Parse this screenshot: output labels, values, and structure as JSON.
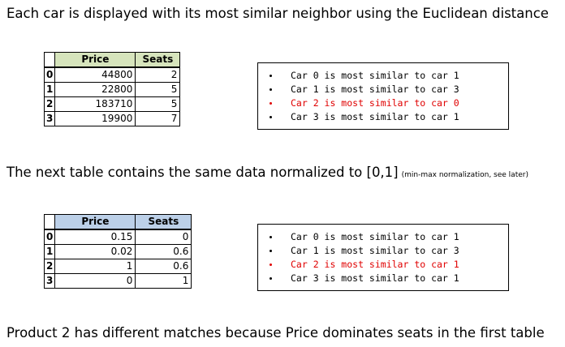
{
  "heading_top": "Each car is displayed with its most similar neighbor using the Euclidean distance",
  "heading_middle": "The next table contains the same data normalized to [0,1]",
  "heading_middle_note": "(min-max normalization, see later)",
  "heading_bottom": "Product 2 has different matches because Price dominates seats in the first table",
  "table_raw": {
    "columns": [
      "Price",
      "Seats"
    ],
    "rows": [
      {
        "index": "0",
        "price": "44800",
        "seats": "2"
      },
      {
        "index": "1",
        "price": "22800",
        "seats": "5"
      },
      {
        "index": "2",
        "price": "183710",
        "seats": "5"
      },
      {
        "index": "3",
        "price": "19900",
        "seats": "7"
      }
    ]
  },
  "table_normalized": {
    "columns": [
      "Price",
      "Seats"
    ],
    "rows": [
      {
        "index": "0",
        "price": "0.15",
        "seats": "0"
      },
      {
        "index": "1",
        "price": "0.02",
        "seats": "0.6"
      },
      {
        "index": "2",
        "price": "1",
        "seats": "0.6"
      },
      {
        "index": "3",
        "price": "0",
        "seats": "1"
      }
    ]
  },
  "neighbors_raw": [
    {
      "text": "Car 0 is most similar to car 1",
      "highlight": false
    },
    {
      "text": "Car 1 is most similar to car 3",
      "highlight": false
    },
    {
      "text": "Car 2 is most similar to car 0",
      "highlight": true
    },
    {
      "text": "Car 3 is most similar to car 1",
      "highlight": false
    }
  ],
  "neighbors_normalized": [
    {
      "text": "Car 0 is most similar to car 1",
      "highlight": false
    },
    {
      "text": "Car 1 is most similar to car 3",
      "highlight": false
    },
    {
      "text": "Car 2 is most similar to car 1",
      "highlight": true
    },
    {
      "text": "Car 3 is most similar to car 1",
      "highlight": false
    }
  ],
  "colors": {
    "highlight": "#e00000",
    "raw_header_bg": "#d6e4bc",
    "normalized_header_bg": "#bcd0e8"
  }
}
